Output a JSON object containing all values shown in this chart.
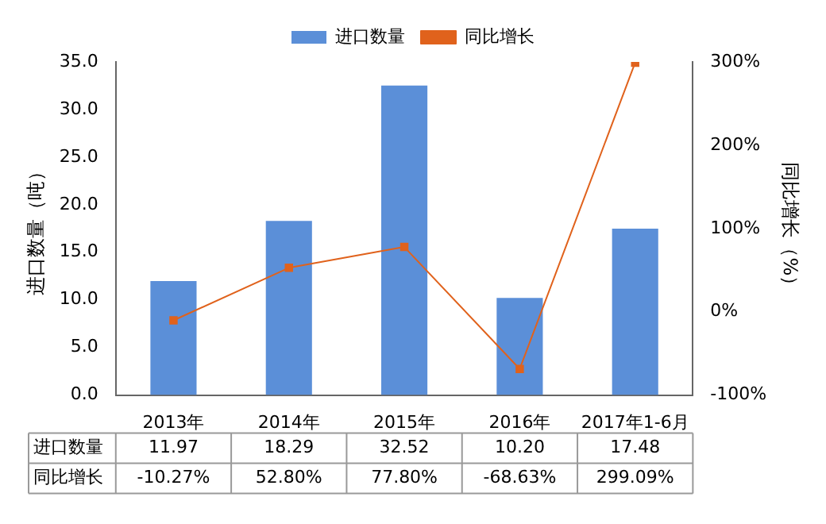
{
  "chart_data": {
    "type": "bar",
    "categories": [
      "2013年",
      "2014年",
      "2015年",
      "2016年",
      "2017年1-6月"
    ],
    "series": [
      {
        "name": "进口数量",
        "color": "#5b8fd8",
        "values": [
          11.97,
          18.29,
          32.52,
          10.2,
          17.48
        ],
        "value_labels": [
          "11.97",
          "18.29",
          "32.52",
          "10.20",
          "17.48"
        ]
      },
      {
        "name": "同比增长",
        "type": "line",
        "axis": "y2",
        "color": "#e0621c",
        "marker": "square",
        "values": [
          -10.27,
          52.8,
          77.8,
          -68.63,
          299.09
        ],
        "value_labels": [
          "-10.27%",
          "52.80%",
          "77.80%",
          "-68.63%",
          "299.09%"
        ]
      }
    ],
    "ylabel": "进口数量（吨）",
    "y2label": "同比增长（%）",
    "ylim": [
      0,
      35
    ],
    "yticks": [
      {
        "value": 0,
        "label": "0.0"
      },
      {
        "value": 5,
        "label": "5.0"
      },
      {
        "value": 10,
        "label": "10.0"
      },
      {
        "value": 15,
        "label": "15.0"
      },
      {
        "value": 20,
        "label": "20.0"
      },
      {
        "value": 25,
        "label": "25.0"
      },
      {
        "value": 30,
        "label": "30.0"
      },
      {
        "value": 35,
        "label": "35.0"
      }
    ],
    "y2lim": [
      -100,
      300
    ],
    "y2ticks": [
      {
        "value": -100,
        "label": "-100%"
      },
      {
        "value": 0,
        "label": "0%"
      },
      {
        "value": 100,
        "label": "100%"
      },
      {
        "value": 200,
        "label": "200%"
      },
      {
        "value": 300,
        "label": "300%"
      }
    ],
    "legend": "top",
    "grid": false
  }
}
